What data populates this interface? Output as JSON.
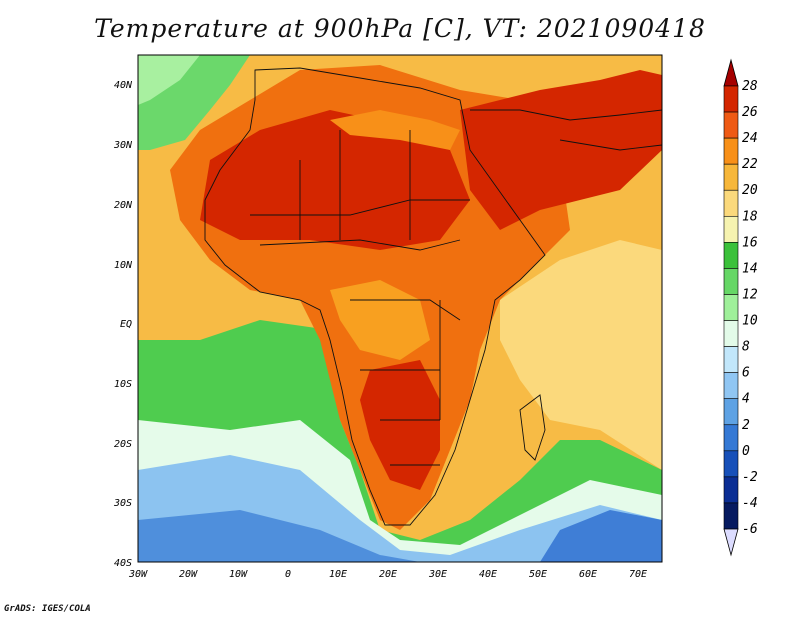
{
  "title": "Temperature at 900hPa [C], VT: 2021090418",
  "credit": "GrADS: IGES/COLA",
  "map": {
    "lat_labels": [
      "40N",
      "30N",
      "20N",
      "10N",
      "EQ",
      "10S",
      "20S",
      "30S",
      "40S"
    ],
    "lon_labels": [
      "30W",
      "20W",
      "10W",
      "0",
      "10E",
      "20E",
      "30E",
      "40E",
      "50E",
      "60E",
      "70E"
    ],
    "extent": {
      "lon_min": -30,
      "lon_max": 75,
      "lat_min": -40,
      "lat_max": 45
    }
  },
  "colorbar": {
    "labels": [
      "28",
      "26",
      "24",
      "22",
      "20",
      "18",
      "16",
      "14",
      "12",
      "10",
      "8",
      "6",
      "4",
      "2",
      "0",
      "-2",
      "-4",
      "-6"
    ],
    "colors": [
      "#a50000",
      "#d42600",
      "#ef5a14",
      "#f89018",
      "#f7b73a",
      "#fbd97c",
      "#f6f3b0",
      "#3bc13a",
      "#66d766",
      "#9ff09a",
      "#e3fbe9",
      "#c2e7fb",
      "#90c6f3",
      "#5ea2e4",
      "#3579d5",
      "#1750b9",
      "#0b2e94",
      "#061a60"
    ]
  },
  "icons": [
    "colorbar-up-arrow-icon",
    "colorbar-down-arrow-icon"
  ]
}
